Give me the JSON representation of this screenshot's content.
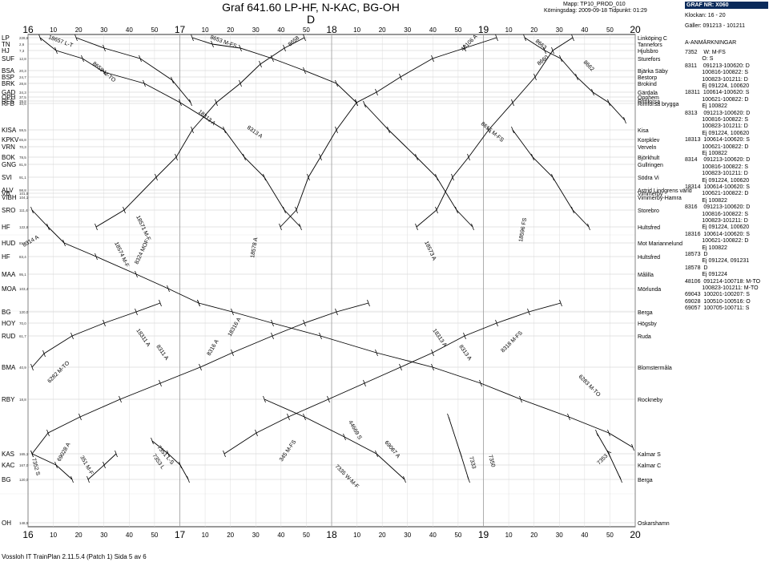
{
  "header": {
    "title": "Graf 641.60 LP-HF, N-KAC, BG-OH",
    "subtitle": "D",
    "mapp": "Mapp:  TP10_PROD_010",
    "korning": "Körningsdag:  2009-09-18   Tidpunkt:  01:29"
  },
  "footer": "Vossloh IT TrainPlan 2.11.5.4 (Patch 1)   Sida 5 av 6",
  "side_panel": {
    "graf_nr": "GRAF NR:  X060",
    "klockan": "Klockan:  16 - 20",
    "galler": "Gäller:  091213 - 101211",
    "heading": "A-ANMÄRKNINGAR",
    "lines": [
      "7352    W: M-FS",
      "           O: S",
      "8311    091213-100620: D",
      "           100816-100822: S",
      "           100823-101211: D",
      "           Ej 091224, 100620",
      "18311  100614-100620: S",
      "           100621-100822: D",
      "           Ej 100822",
      "8313    091213-100620: D",
      "           100816-100822: S",
      "           100823-101211: D",
      "           Ej 091224, 100620",
      "18313  100614-100620: S",
      "           100621-100822: D",
      "           Ej 100822",
      "8314    091213-100620: D",
      "           100816-100822: S",
      "           100823-101211: D",
      "           Ej 091224, 100620",
      "18314  100614-100620: S",
      "           100621-100822: D",
      "           Ej 100822",
      "8316    091213-100620: D",
      "           100816-100822: S",
      "           100823-101211: D",
      "           Ej 091224, 100620",
      "18316  100614-100620: S",
      "           100621-100822: D",
      "           Ej 100822",
      "18573  D",
      "           Ej 091224, 091231",
      "18578  D",
      "           Ej 091224",
      "48106  091214-100718: M-TO",
      "           100823-101211: M-TO",
      "69043  100201-100207: S",
      "69028  100510-100516: O",
      "69057  100705-100711: S"
    ]
  },
  "hours": [
    "16",
    "17",
    "18",
    "19",
    "20"
  ],
  "minute_labels": [
    "10",
    "20",
    "30",
    "40",
    "50"
  ],
  "stations": [
    {
      "abbr": "LP",
      "km": "228,6",
      "name": "Linköping C"
    },
    {
      "abbr": "TN",
      "km": "2,6",
      "name": "Tannefors"
    },
    {
      "abbr": "HJ",
      "km": "7,3",
      "name": "Hjulsbro"
    },
    {
      "abbr": "SUF",
      "km": "12,8",
      "name": "Sturefors"
    },
    {
      "abbr": "BSA",
      "km": "20,3",
      "name": "Bjärka Säby"
    },
    {
      "abbr": "BSP",
      "km": "24,7",
      "name": "Bestorp"
    },
    {
      "abbr": "BRK",
      "km": "28,8",
      "name": "Brokind"
    },
    {
      "abbr": "GAD",
      "km": "34,3",
      "name": "Gärdala"
    },
    {
      "abbr": "OPH",
      "km": "37,5",
      "name": "Opphem"
    },
    {
      "abbr": "RFS",
      "km": "39,8",
      "name": "Rimforsa"
    },
    {
      "abbr": "RFB",
      "km": "40,6",
      "name": "Rimforsa brygga"
    },
    {
      "abbr": "KISA",
      "km": "59,5",
      "name": "Kisa"
    },
    {
      "abbr": "KPKV",
      "km": "65,8",
      "name": "Korpklev"
    },
    {
      "abbr": "VRN",
      "km": "70,3",
      "name": "Verveln"
    },
    {
      "abbr": "BOK",
      "km": "78,5",
      "name": "Björkhult"
    },
    {
      "abbr": "GNG",
      "km": "81,9",
      "name": "Gullringen"
    },
    {
      "abbr": "SVI",
      "km": "91,1",
      "name": "Södra Vi"
    },
    {
      "abbr": "ALV",
      "km": "98,8",
      "name": "Astrid Lindgrens värld"
    },
    {
      "abbr": "VB",
      "km": "101,5",
      "name": "Vimmerby"
    },
    {
      "abbr": "VIBH",
      "km": "104,1",
      "name": "Vimmerby-Hamra"
    },
    {
      "abbr": "SRO",
      "km": "111,4",
      "name": "Storebro"
    },
    {
      "abbr": "HF",
      "km": "122,8",
      "name": "Hultsfred"
    },
    {
      "abbr": "HUD",
      "km": "81,8",
      "name": "Mot Mariannelund"
    },
    {
      "abbr": "HF",
      "km": "83,4",
      "name": "Hultsfred"
    },
    {
      "abbr": "MAA",
      "km": "95,1",
      "name": "Målilla"
    },
    {
      "abbr": "MOA",
      "km": "103,4",
      "name": "Mörlunda"
    },
    {
      "abbr": "BG",
      "km": "120,0",
      "name": "Berga"
    },
    {
      "abbr": "HOY",
      "km": "70,0",
      "name": "Högsby"
    },
    {
      "abbr": "RUD",
      "km": "61,7",
      "name": "Ruda"
    },
    {
      "abbr": "BMA",
      "km": "40,9",
      "name": "Blomstermåla"
    },
    {
      "abbr": "RBY",
      "km": "18,8",
      "name": "Rockneby"
    },
    {
      "abbr": "KAS",
      "km": "165,1",
      "name": "Kalmar S"
    },
    {
      "abbr": "KAC",
      "km": "167,0",
      "name": "Kalmar C"
    },
    {
      "abbr": "BG",
      "km": "120,0",
      "name": "Berga"
    },
    {
      "abbr": "OH",
      "km": "148,5",
      "name": "Oskarshamn"
    }
  ],
  "trains": [
    {
      "label": "18657 L-T"
    },
    {
      "label": "8653 M-FS"
    },
    {
      "label": "8658"
    },
    {
      "label": "8659 M-TO"
    },
    {
      "label": "48106 A"
    },
    {
      "label": "8663"
    },
    {
      "label": "8660"
    },
    {
      "label": "8662"
    },
    {
      "label": "18313 A"
    },
    {
      "label": "8313 A"
    },
    {
      "label": "8615 M-FS"
    },
    {
      "label": "18571 M-F"
    },
    {
      "label": "18574 M-F"
    },
    {
      "label": "8314 A"
    },
    {
      "label": "8324 MOF"
    },
    {
      "label": "18578 A"
    },
    {
      "label": "18573 A"
    },
    {
      "label": "18596 FS"
    },
    {
      "label": "18311 A"
    },
    {
      "label": "8311 A"
    },
    {
      "label": "8316 A"
    },
    {
      "label": "18316 A"
    },
    {
      "label": "18313 A"
    },
    {
      "label": "8313 A"
    },
    {
      "label": "8318 M-FS"
    },
    {
      "label": "6282 M-TO"
    },
    {
      "label": "6283 M-TO"
    },
    {
      "label": "44669 S"
    },
    {
      "label": "69067 A"
    },
    {
      "label": "7351 L-S"
    },
    {
      "label": "7353 L"
    },
    {
      "label": "7352 S"
    },
    {
      "label": "69028 A"
    },
    {
      "label": "351 M-F"
    },
    {
      "label": "345 M-FS"
    },
    {
      "label": "7335 W-M-F"
    },
    {
      "label": "7333"
    },
    {
      "label": "7350"
    },
    {
      "label": "7353 A"
    }
  ]
}
